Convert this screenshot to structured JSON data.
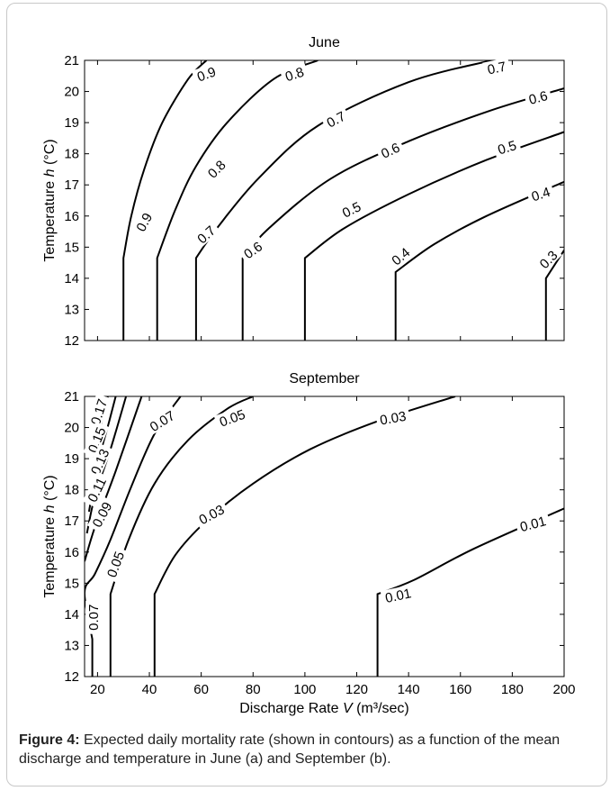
{
  "caption": {
    "label": "Figure 4:",
    "text": " Expected daily mortality rate (shown in contours) as a function of the mean discharge and temperature in June (a) and September (b)."
  },
  "chart_data": [
    {
      "type": "contour",
      "title": "June",
      "xlabel": "",
      "ylabel": "Temperature h (°C)",
      "xlim": [
        15,
        200
      ],
      "ylim": [
        12,
        21
      ],
      "x_ticks": [],
      "y_ticks": [
        12,
        13,
        14,
        15,
        16,
        17,
        18,
        19,
        20,
        21
      ],
      "knee_temperature": 14.65,
      "levels": [
        {
          "label": "0.9",
          "x_at_12C": 30,
          "points": [
            [
              30,
              12
            ],
            [
              30,
              14.65
            ],
            [
              33,
              16
            ],
            [
              38,
              17.5
            ],
            [
              45,
              19
            ],
            [
              55,
              20.4
            ],
            [
              62,
              21
            ]
          ],
          "labels": [
            [
              38,
              15.8,
              -62
            ],
            [
              62,
              20.55,
              -20
            ]
          ]
        },
        {
          "label": "0.8",
          "x_at_12C": 43,
          "points": [
            [
              43,
              12
            ],
            [
              43,
              14.65
            ],
            [
              50,
              16.2
            ],
            [
              58,
              17.6
            ],
            [
              70,
              19
            ],
            [
              88,
              20.4
            ],
            [
              105,
              21
            ]
          ],
          "labels": [
            [
              66,
              17.5,
              -45
            ],
            [
              96,
              20.55,
              -18
            ]
          ]
        },
        {
          "label": "0.7",
          "x_at_12C": 58,
          "points": [
            [
              58,
              12
            ],
            [
              58,
              14.65
            ],
            [
              66,
              15.6
            ],
            [
              82,
              17.2
            ],
            [
              105,
              18.9
            ],
            [
              140,
              20.3
            ],
            [
              172,
              21
            ]
          ],
          "labels": [
            [
              62,
              15.4,
              -42
            ],
            [
              112,
              19.1,
              -28
            ],
            [
              174,
              20.75,
              -12
            ]
          ]
        },
        {
          "label": "0.6",
          "x_at_12C": 76,
          "points": [
            [
              76,
              12
            ],
            [
              76,
              14.65
            ],
            [
              86,
              15.6
            ],
            [
              110,
              17.2
            ],
            [
              140,
              18.4
            ],
            [
              172,
              19.4
            ],
            [
              200,
              20.1
            ]
          ],
          "labels": [
            [
              80,
              14.9,
              -35
            ],
            [
              133,
              18.1,
              -25
            ],
            [
              190,
              19.8,
              -15
            ]
          ]
        },
        {
          "label": "0.5",
          "x_at_12C": 100,
          "points": [
            [
              100,
              12
            ],
            [
              100,
              14.65
            ],
            [
              115,
              15.6
            ],
            [
              140,
              16.7
            ],
            [
              170,
              17.8
            ],
            [
              200,
              18.7
            ]
          ],
          "labels": [
            [
              118,
              16.2,
              -26
            ],
            [
              178,
              18.2,
              -17
            ]
          ]
        },
        {
          "label": "0.4",
          "x_at_12C": 135,
          "points": [
            [
              135,
              12
            ],
            [
              135,
              14.2
            ],
            [
              150,
              15.1
            ],
            [
              170,
              16
            ],
            [
              200,
              17.1
            ]
          ],
          "labels": [
            [
              137,
              14.7,
              -40
            ],
            [
              191,
              16.7,
              -18
            ]
          ]
        },
        {
          "label": "0.3",
          "x_at_12C": 193,
          "points": [
            [
              193,
              12
            ],
            [
              193,
              14
            ],
            [
              200,
              14.9
            ]
          ],
          "labels": [
            [
              194,
              14.6,
              -45
            ]
          ]
        }
      ]
    },
    {
      "type": "contour",
      "title": "September",
      "xlabel": "Discharge Rate V (m³/sec)",
      "ylabel": "Temperature h (°C)",
      "xlim": [
        15,
        200
      ],
      "ylim": [
        12,
        21
      ],
      "x_ticks": [
        20,
        40,
        60,
        80,
        100,
        120,
        140,
        160,
        180,
        200
      ],
      "y_ticks": [
        12,
        13,
        14,
        15,
        16,
        17,
        18,
        19,
        20,
        21
      ],
      "levels": [
        {
          "label": "0.17",
          "points": [
            [
              19.3,
              19.5
            ],
            [
              21,
              20.3
            ],
            [
              22.3,
              21
            ]
          ],
          "labels": [
            [
              20.6,
              20.5,
              -72
            ]
          ]
        },
        {
          "label": "0.15",
          "points": [
            [
              17.6,
              18.5
            ],
            [
              20.5,
              19.8
            ],
            [
              24,
              21
            ]
          ],
          "labels": [
            [
              19.8,
              19.6,
              -68
            ]
          ]
        },
        {
          "label": "0.13",
          "points": [
            [
              16.7,
              17.3
            ],
            [
              20,
              18.8
            ],
            [
              24.5,
              20.2
            ],
            [
              27,
              21
            ]
          ],
          "labels": [
            [
              21,
              18.9,
              -66
            ]
          ]
        },
        {
          "label": "0.11",
          "points": [
            [
              15.9,
              16.6
            ],
            [
              19,
              17.8
            ],
            [
              25,
              19.3
            ],
            [
              31,
              21
            ]
          ],
          "labels": [
            [
              19.8,
              18,
              -64
            ]
          ]
        },
        {
          "label": "0.09",
          "points": [
            [
              15,
              15.7
            ],
            [
              19,
              16.8
            ],
            [
              27,
              18.6
            ],
            [
              37,
              21
            ]
          ],
          "labels": [
            [
              21.8,
              17.2,
              -62
            ]
          ]
        },
        {
          "label": "0.07",
          "x_at_12C": 18,
          "points": [
            [
              18,
              12
            ],
            [
              18,
              13.2
            ],
            [
              15,
              14.7
            ],
            [
              19,
              15.3
            ],
            [
              25,
              16.4
            ],
            [
              33,
              18.1
            ],
            [
              42,
              19.8
            ],
            [
              52,
              21
            ]
          ],
          "labels": [
            [
              18.5,
              13.9,
              -90
            ],
            [
              45,
              20.2,
              -32
            ]
          ]
        },
        {
          "label": "0.05",
          "x_at_12C": 25,
          "points": [
            [
              25,
              12
            ],
            [
              25,
              14.65
            ],
            [
              32,
              16.4
            ],
            [
              42,
              18.2
            ],
            [
              55,
              19.6
            ],
            [
              70,
              20.6
            ],
            [
              80,
              21
            ]
          ],
          "labels": [
            [
              27,
              15.6,
              -70
            ],
            [
              72,
              20.3,
              -20
            ]
          ]
        },
        {
          "label": "0.03",
          "x_at_12C": 42,
          "points": [
            [
              42,
              12
            ],
            [
              42,
              14.65
            ],
            [
              50,
              15.9
            ],
            [
              62,
              17
            ],
            [
              80,
              18.2
            ],
            [
              102,
              19.3
            ],
            [
              128,
              20.2
            ],
            [
              158,
              21
            ]
          ],
          "labels": [
            [
              64,
              17.2,
              -28
            ],
            [
              134,
              20.3,
              -10
            ]
          ]
        },
        {
          "label": "0.01",
          "x_at_12C": 128,
          "points": [
            [
              128,
              12
            ],
            [
              128,
              14.65
            ],
            [
              142,
              15.1
            ],
            [
              165,
              16.1
            ],
            [
              200,
              17.4
            ]
          ],
          "labels": [
            [
              136,
              14.6,
              -12
            ],
            [
              188,
              16.9,
              -15
            ]
          ]
        }
      ]
    }
  ]
}
